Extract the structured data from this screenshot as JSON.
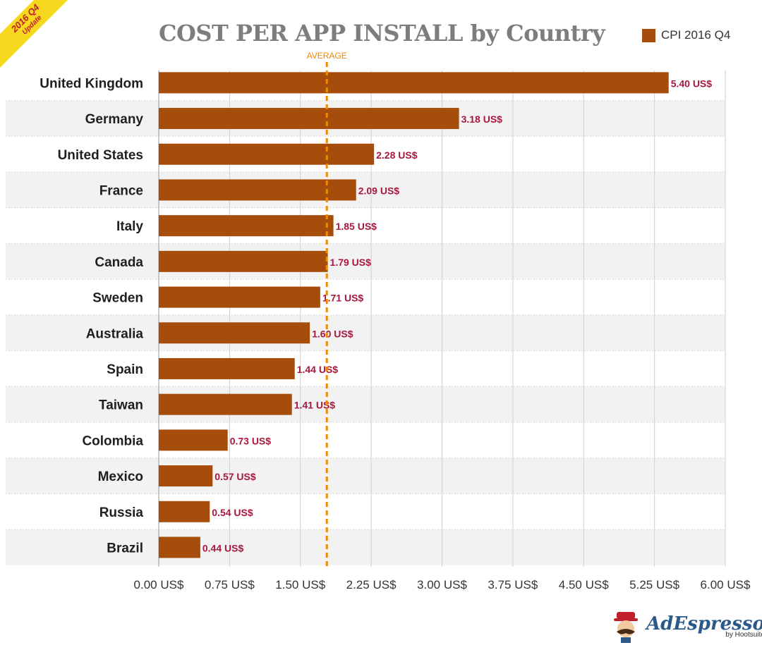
{
  "badge": {
    "line1": "2016 Q4",
    "line2": "Update"
  },
  "header": {
    "title": "COST PER APP INSTALL by Country",
    "legend_label": "CPI 2016 Q4"
  },
  "chart_data": {
    "type": "bar",
    "orientation": "horizontal",
    "title": "COST PER APP INSTALL by Country",
    "categories": [
      "United Kingdom",
      "Germany",
      "United States",
      "France",
      "Italy",
      "Canada",
      "Sweden",
      "Australia",
      "Spain",
      "Taiwan",
      "Colombia",
      "Mexico",
      "Russia",
      "Brazil"
    ],
    "series": [
      {
        "name": "CPI 2016 Q4",
        "values": [
          5.4,
          3.18,
          2.28,
          2.09,
          1.85,
          1.79,
          1.71,
          1.6,
          1.44,
          1.41,
          0.73,
          0.57,
          0.54,
          0.44
        ],
        "labels": [
          "5.40 US$",
          "3.18 US$",
          "2.28 US$",
          "2.09 US$",
          "1.85 US$",
          "1.79 US$",
          "1.71 US$",
          "1.60 US$",
          "1.44 US$",
          "1.41 US$",
          "0.73 US$",
          "0.57 US$",
          "0.54 US$",
          "0.44 US$"
        ]
      }
    ],
    "xlim": [
      0,
      6
    ],
    "xticks": [
      0,
      0.75,
      1.5,
      2.25,
      3,
      3.75,
      4.5,
      5.25,
      6
    ],
    "xtick_labels": [
      "0.00 US$",
      "0.75 US$",
      "1.50 US$",
      "2.25 US$",
      "3.00 US$",
      "3.75 US$",
      "4.50 US$",
      "5.25 US$",
      "6.00 US$"
    ],
    "average": {
      "value": 1.78,
      "label": "AVERAGE"
    },
    "grid": true,
    "legend": "top-right"
  },
  "colors": {
    "bar": "#a64d0b",
    "value_label": "#a8173c",
    "average_line": "#f08a00",
    "grid": "#cfcfcf",
    "band": "#f2f2f2"
  },
  "brand": {
    "name": "AdEspresso",
    "byline": "by Hootsuite"
  }
}
